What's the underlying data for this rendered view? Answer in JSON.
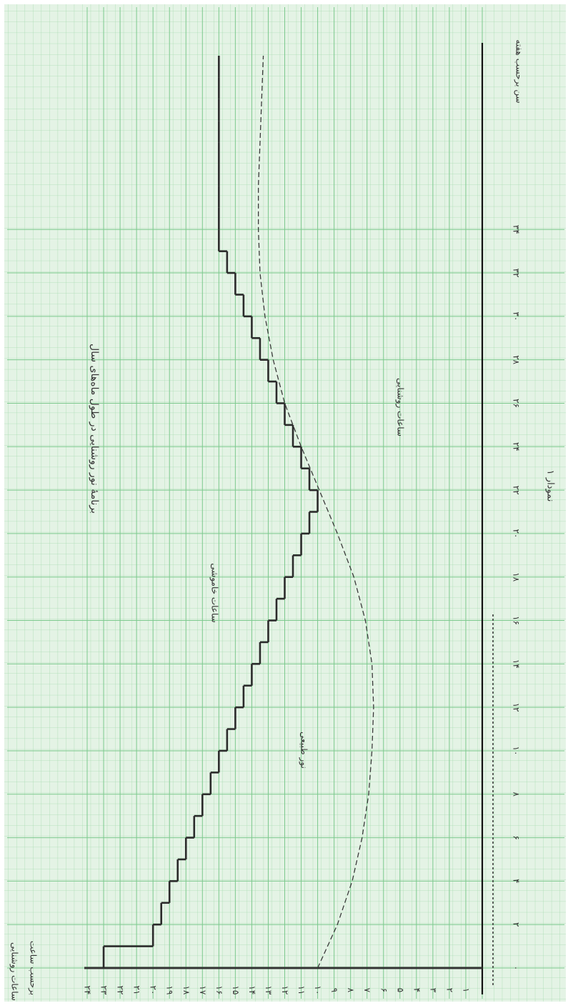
{
  "chart_data": {
    "type": "line",
    "title": "برنامهٔ نور روشنایی در طول ماه‌های سال",
    "caption": "نمودار ۱",
    "xlabel": "سن برحسب هفته",
    "ylabel": "ساعات روشنایی",
    "ylabel_unit": "برحسب ساعت",
    "annotations": [
      "ساعات خاموشی",
      "نور طبیعی",
      "ساعات روشنایی"
    ],
    "xlim": [
      0,
      42
    ],
    "ylim": [
      0,
      24
    ],
    "grid": true,
    "xticks": [
      {
        "value": 0,
        "label": "۰"
      },
      {
        "value": 2,
        "label": "۲"
      },
      {
        "value": 4,
        "label": "۴"
      },
      {
        "value": 6,
        "label": "۶"
      },
      {
        "value": 8,
        "label": "۸"
      },
      {
        "value": 10,
        "label": "۱۰"
      },
      {
        "value": 12,
        "label": "۱۲"
      },
      {
        "value": 14,
        "label": "۱۴"
      },
      {
        "value": 16,
        "label": "۱۶"
      },
      {
        "value": 18,
        "label": "۱۸"
      },
      {
        "value": 20,
        "label": "۲۰"
      },
      {
        "value": 22,
        "label": "۲۲"
      },
      {
        "value": 24,
        "label": "۲۴"
      },
      {
        "value": 26,
        "label": "۲۶"
      },
      {
        "value": 28,
        "label": "۲۸"
      },
      {
        "value": 30,
        "label": "۳۰"
      },
      {
        "value": 32,
        "label": "۳۲"
      },
      {
        "value": 34,
        "label": "۳۴"
      }
    ],
    "yticks": [
      {
        "value": 0,
        "label": "۰"
      },
      {
        "value": 1,
        "label": "۱"
      },
      {
        "value": 2,
        "label": "۲"
      },
      {
        "value": 3,
        "label": "۳"
      },
      {
        "value": 4,
        "label": "۴"
      },
      {
        "value": 5,
        "label": "۵"
      },
      {
        "value": 6,
        "label": "۶"
      },
      {
        "value": 7,
        "label": "۷"
      },
      {
        "value": 8,
        "label": "۸"
      },
      {
        "value": 9,
        "label": "۹"
      },
      {
        "value": 10,
        "label": "۱۰"
      },
      {
        "value": 11,
        "label": "۱۱"
      },
      {
        "value": 12,
        "label": "۱۲"
      },
      {
        "value": 13,
        "label": "۱۳"
      },
      {
        "value": 14,
        "label": "۱۴"
      },
      {
        "value": 15,
        "label": "۱۵"
      },
      {
        "value": 16,
        "label": "۱۶"
      },
      {
        "value": 17,
        "label": "۱۷"
      },
      {
        "value": 18,
        "label": "۱۸"
      },
      {
        "value": 19,
        "label": "۱۹"
      },
      {
        "value": 20,
        "label": "۲۰"
      },
      {
        "value": 21,
        "label": "۲۱"
      },
      {
        "value": 22,
        "label": "۲۲"
      },
      {
        "value": 23,
        "label": "۲۳"
      },
      {
        "value": 24,
        "label": "۲۴"
      }
    ],
    "series": [
      {
        "style": "step",
        "color": "#2b2b2b",
        "x": [
          0,
          1,
          2,
          3,
          4,
          5,
          6,
          7,
          8,
          9,
          10,
          11,
          12,
          13,
          14,
          15,
          16,
          17,
          18,
          19,
          20,
          21,
          22,
          23,
          24,
          25,
          26,
          27,
          28,
          29,
          30,
          31,
          32,
          33,
          34,
          35,
          36,
          37,
          38,
          39,
          40,
          41
        ],
        "values": [
          23,
          20,
          19.5,
          19,
          18.5,
          18,
          17.5,
          17,
          16.5,
          16,
          15.5,
          15,
          14.5,
          14,
          13.5,
          13,
          12.5,
          12,
          11.5,
          11,
          10.5,
          10,
          10.5,
          11,
          11.5,
          12,
          12.5,
          13,
          13.5,
          14,
          14.5,
          15,
          15.5,
          16,
          16,
          16,
          16,
          16,
          16,
          16,
          16,
          16
        ]
      },
      {
        "style": "dashed",
        "color": "#3a3a3a",
        "x": [
          0,
          2,
          4,
          6,
          8,
          10,
          12,
          14,
          16,
          18,
          20,
          22,
          24,
          26,
          28,
          30,
          32,
          34,
          36,
          38,
          40,
          42
        ],
        "values": [
          10,
          8.8,
          7.9,
          7.3,
          6.9,
          6.7,
          6.6,
          6.7,
          7.1,
          7.8,
          8.8,
          9.9,
          11,
          12,
          12.7,
          13.2,
          13.5,
          13.6,
          13.6,
          13.5,
          13.4,
          13.3
        ]
      }
    ]
  }
}
